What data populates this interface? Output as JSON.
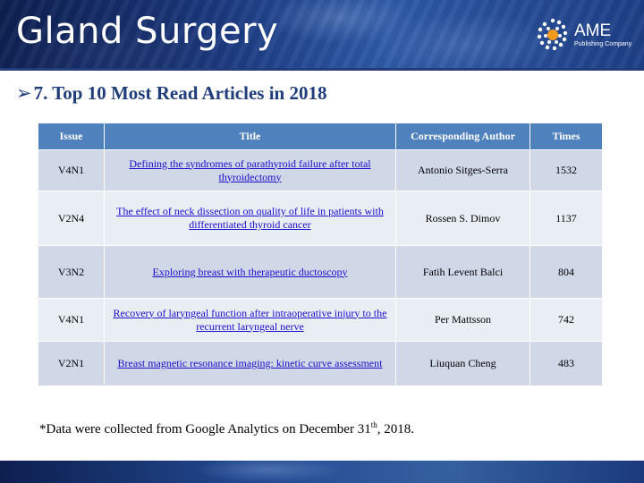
{
  "header": {
    "journal_title": "Gland Surgery",
    "logo_name": "AME",
    "logo_sub": "Publishing Company"
  },
  "heading": {
    "arrow": "➢",
    "text": "7. Top 10 Most Read Articles in 2018"
  },
  "table": {
    "columns": [
      "Issue",
      "Title",
      "Corresponding Author",
      "Times"
    ],
    "rows": [
      {
        "issue": "V4N1",
        "title": "Defining the syndromes of parathyroid failure after total thyroidectomy",
        "author": "Antonio Sitges-Serra",
        "times": "1532"
      },
      {
        "issue": "V2N4",
        "title": "The effect of neck dissection on quality of life in patients with differentiated thyroid cancer",
        "author": "Rossen S. Dimov",
        "times": "1137"
      },
      {
        "issue": "V3N2",
        "title": "Exploring breast with therapeutic ductoscopy",
        "author": "Fatih Levent Balci",
        "times": "804"
      },
      {
        "issue": "V4N1",
        "title": "Recovery of laryngeal function after intraoperative injury to the recurrent laryngeal nerve",
        "author": "Per Mattsson",
        "times": "742"
      },
      {
        "issue": "V2N1",
        "title": "Breast magnetic resonance imaging: kinetic curve assessment",
        "author": "Liuquan Cheng",
        "times": "483"
      }
    ]
  },
  "footnote": {
    "before": "*Data were collected from Google Analytics on December 31",
    "sup": "th",
    "after": ", 2018."
  },
  "colors": {
    "header_blue": "#1c3a80",
    "heading_text": "#1f3d7a",
    "table_header": "#4f81bd",
    "row_odd": "#d0d8e8",
    "row_even": "#e9edf4",
    "link": "#1a0dcc"
  }
}
